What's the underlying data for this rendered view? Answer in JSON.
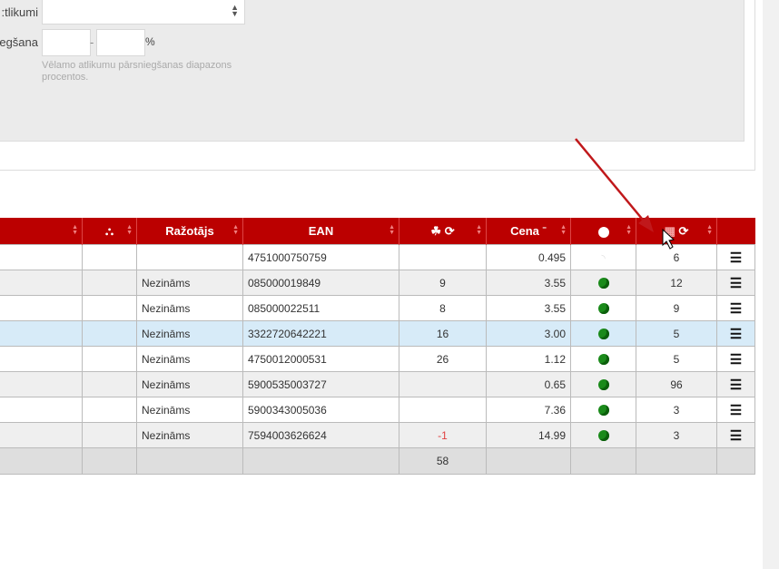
{
  "filters": {
    "stock_label": "tlikumi:",
    "stock_select_value": "",
    "exceed_label": "egšana",
    "exceed_from": "",
    "exceed_to": "",
    "range_dash": "-",
    "percent_sign": "%",
    "help_text": "Vēlamo atlikumu pārsniegšanas diapazons procentos."
  },
  "table": {
    "headers": [
      "",
      "sitemap-icon",
      "Ražotājs",
      "EAN",
      "cubes-refresh-icons",
      "Cena",
      "globe-icon",
      "calendar-refresh-icons",
      ""
    ],
    "header_labels": {
      "manufacturer": "Ražotājs",
      "ean": "EAN",
      "price": "Cena"
    },
    "rows": [
      {
        "manufacturer": "",
        "ean": "4751000750759",
        "qty": "",
        "price": "0.495",
        "status": "rss",
        "days": "6"
      },
      {
        "manufacturer": "Nezināms",
        "ean": "085000019849",
        "qty": "9",
        "price": "3.55",
        "status": "globe",
        "days": "12"
      },
      {
        "manufacturer": "Nezināms",
        "ean": "085000022511",
        "qty": "8",
        "price": "3.55",
        "status": "globe",
        "days": "9"
      },
      {
        "manufacturer": "Nezināms",
        "ean": "3322720642221",
        "qty": "16",
        "price": "3.00",
        "status": "globe",
        "days": "5",
        "selected": true
      },
      {
        "manufacturer": "Nezināms",
        "ean": "4750012000531",
        "qty": "26",
        "price": "1.12",
        "status": "globe",
        "days": "5"
      },
      {
        "manufacturer": "Nezināms",
        "ean": "5900535003727",
        "qty": "",
        "price": "0.65",
        "status": "globe",
        "days": "96"
      },
      {
        "manufacturer": "Nezināms",
        "ean": "5900343005036",
        "qty": "",
        "price": "7.36",
        "status": "globe",
        "days": "3"
      },
      {
        "manufacturer": "Nezināms",
        "ean": "7594003626624",
        "qty": "-1",
        "price": "14.99",
        "status": "globe",
        "days": "3"
      }
    ],
    "total_qty": "58"
  },
  "colors": {
    "header_bg": "#bb0000",
    "selected_row": "#d7ebf8",
    "negative": "#e04040",
    "annotation_arrow": "#c0181b"
  }
}
